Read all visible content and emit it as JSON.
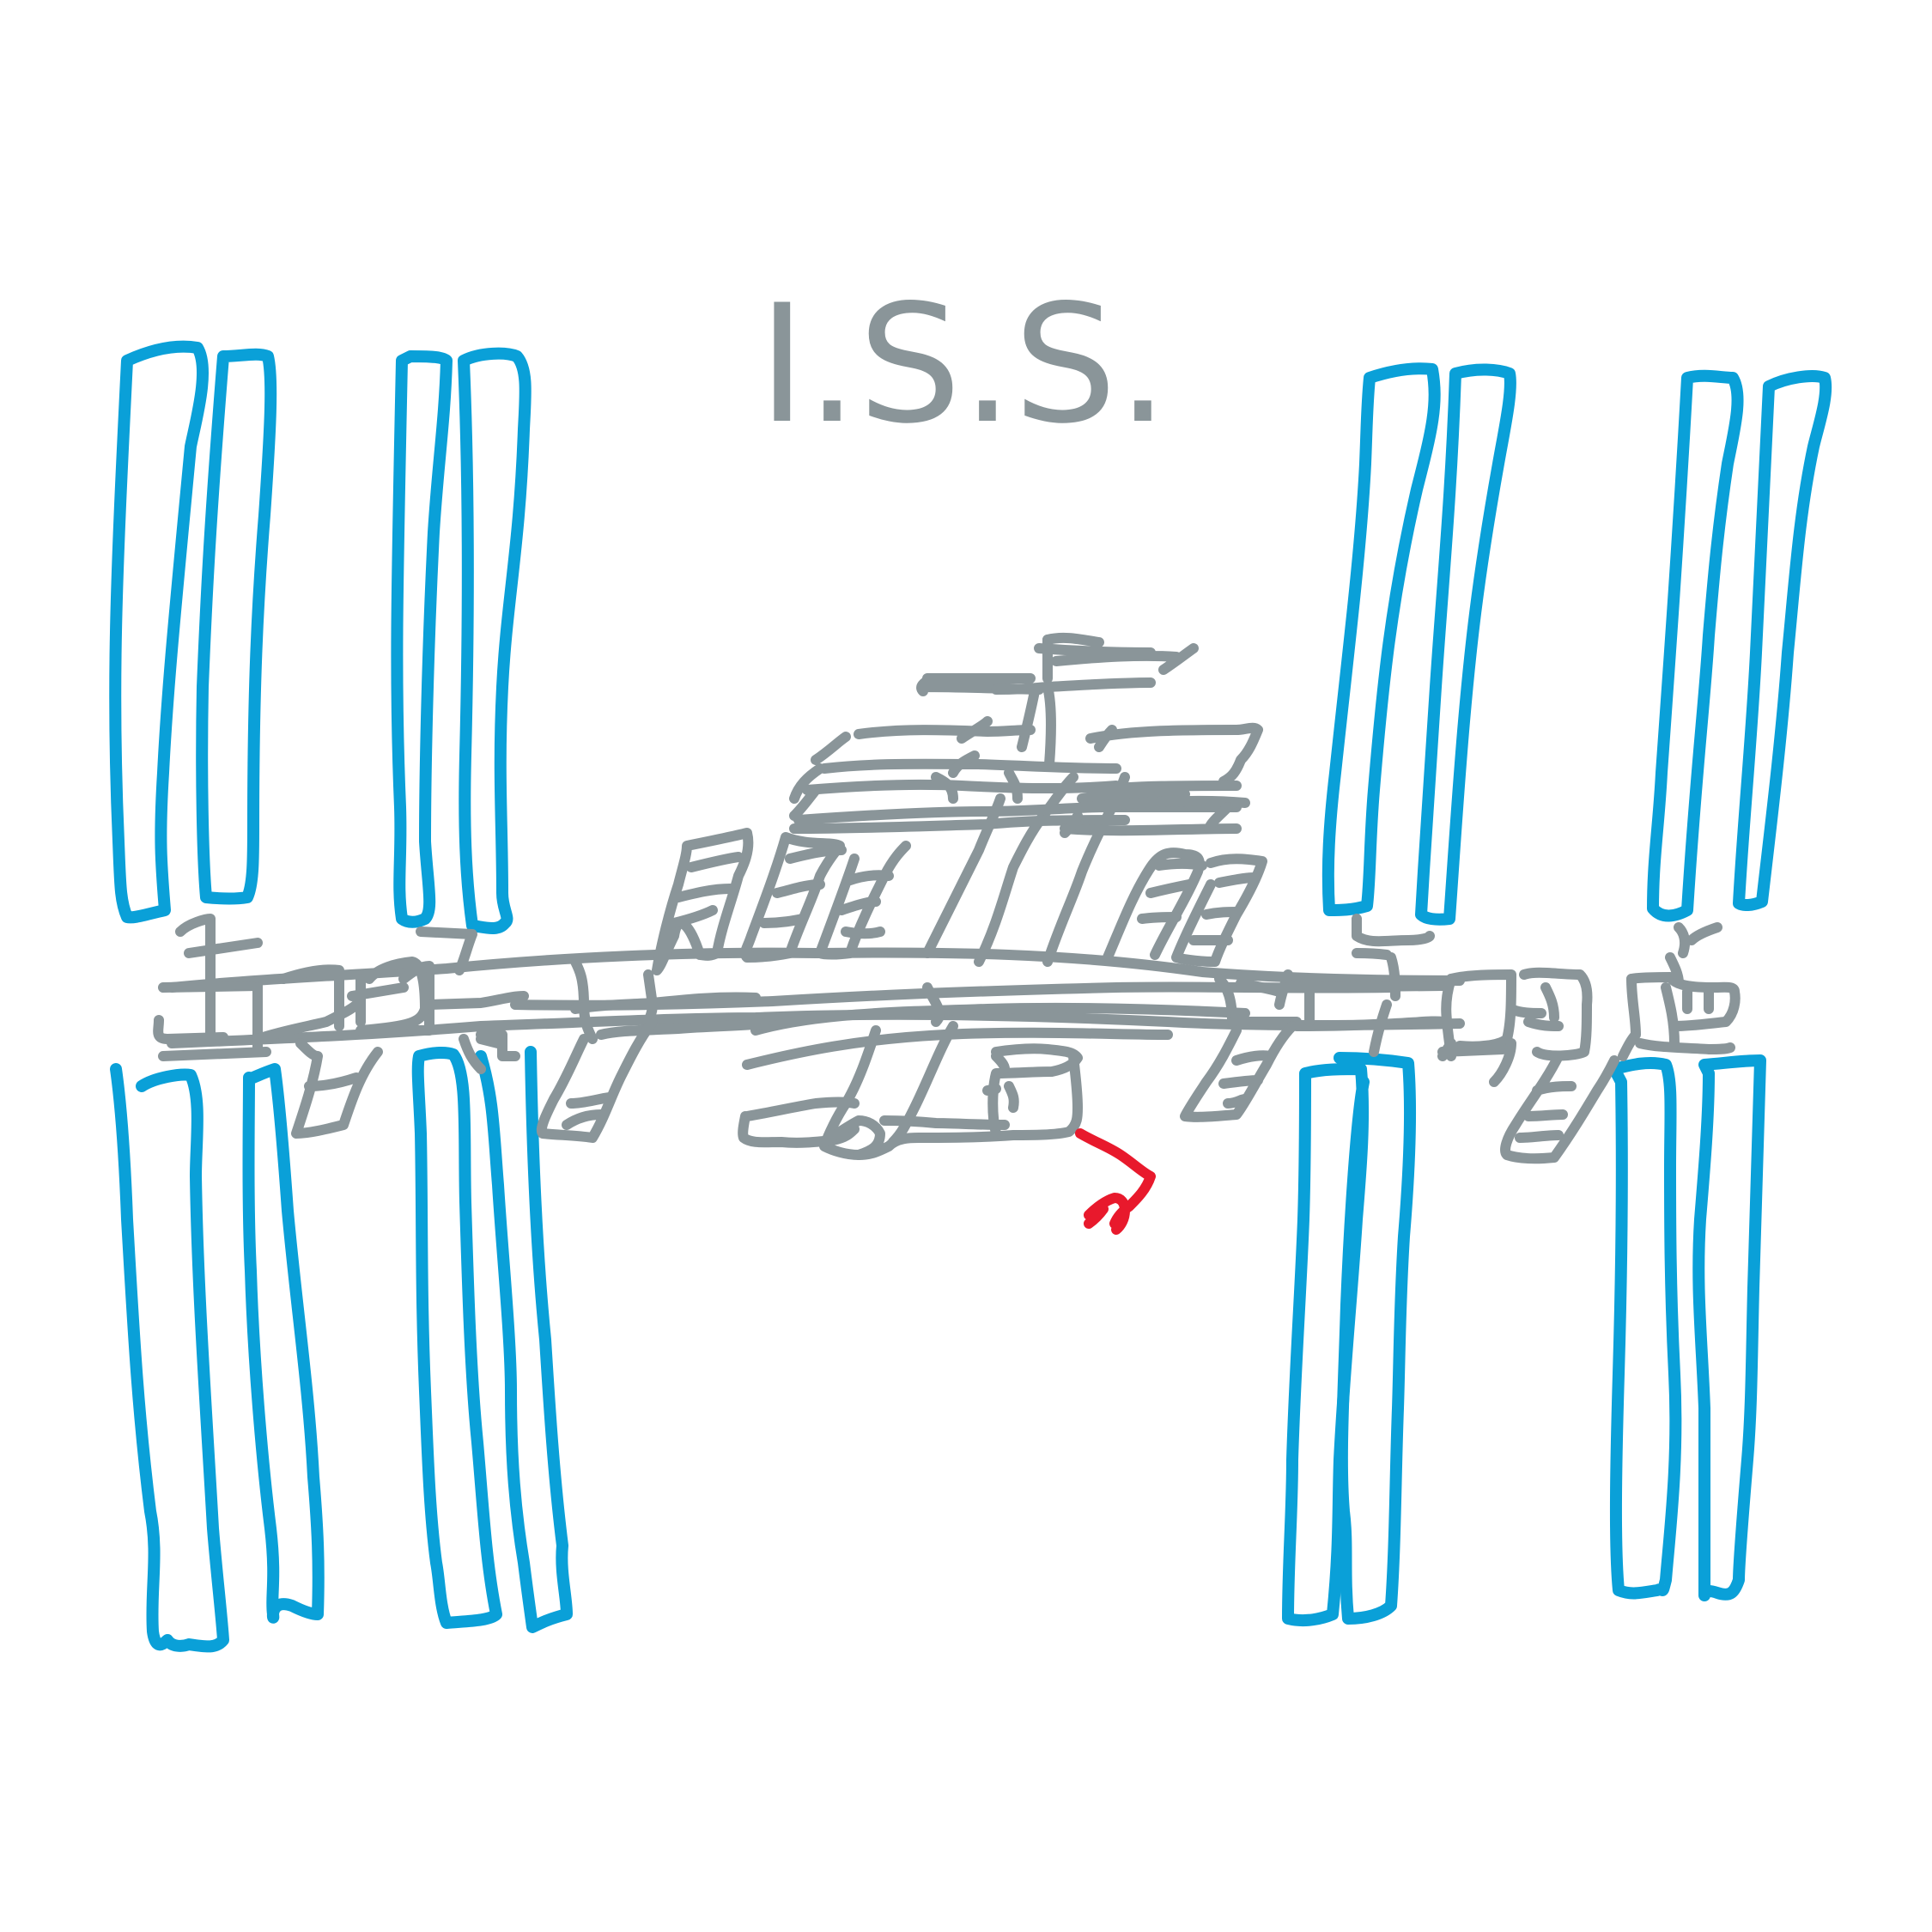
{
  "title": "I.S.S.",
  "colors": {
    "background": "#ffffff",
    "solar_panels": "#0aa0d8",
    "structure": "#8a9599",
    "robotic_arm": "#e8192c"
  },
  "icons": {
    "solar_array": "solar-array-icon",
    "truss": "truss-icon",
    "module": "module-icon",
    "robotic_arm": "robotic-arm-icon"
  }
}
